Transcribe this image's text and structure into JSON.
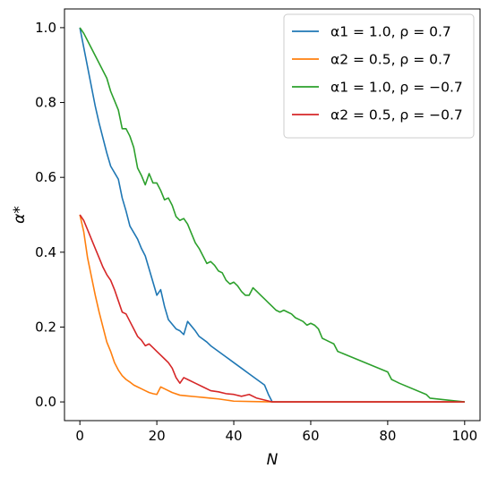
{
  "chart_data": {
    "type": "line",
    "xlabel": "N",
    "ylabel": "α*",
    "xlim": [
      -4,
      104
    ],
    "ylim": [
      -0.05,
      1.05
    ],
    "xticks": [
      "0",
      "20",
      "40",
      "60",
      "80",
      "100"
    ],
    "yticks": [
      "0.0",
      "0.2",
      "0.4",
      "0.6",
      "0.8",
      "1.0"
    ],
    "grid": false,
    "legend_position": "top-right",
    "series": [
      {
        "name": "α1 = 1.0, ρ = 0.7",
        "color": "#1f77b4",
        "x": [
          0,
          2,
          4,
          5,
          7,
          8,
          10,
          11,
          12,
          13,
          15,
          16,
          17,
          18,
          20,
          21,
          22,
          23,
          25,
          26,
          27,
          28,
          30,
          31,
          33,
          34,
          36,
          38,
          40,
          42,
          44,
          46,
          48,
          49,
          50,
          60,
          70,
          80,
          90,
          100
        ],
        "y": [
          1.0,
          0.895,
          0.79,
          0.745,
          0.665,
          0.63,
          0.595,
          0.545,
          0.51,
          0.47,
          0.435,
          0.41,
          0.39,
          0.355,
          0.285,
          0.3,
          0.255,
          0.22,
          0.195,
          0.19,
          0.18,
          0.215,
          0.19,
          0.175,
          0.16,
          0.15,
          0.135,
          0.12,
          0.105,
          0.09,
          0.075,
          0.06,
          0.045,
          0.02,
          0.0,
          0.0,
          0.0,
          0.0,
          0.0,
          0.0
        ]
      },
      {
        "name": "α2 = 0.5, ρ = 0.7",
        "color": "#ff7f0e",
        "x": [
          0,
          1,
          2,
          3,
          4,
          5,
          6,
          7,
          8,
          9,
          10,
          11,
          12,
          13,
          14,
          15,
          16,
          17,
          18,
          19,
          20,
          21,
          22,
          24,
          26,
          28,
          30,
          32,
          34,
          36,
          38,
          40,
          45,
          50,
          60,
          70,
          80,
          90,
          100
        ],
        "y": [
          0.5,
          0.455,
          0.385,
          0.335,
          0.285,
          0.24,
          0.2,
          0.16,
          0.135,
          0.105,
          0.085,
          0.07,
          0.06,
          0.053,
          0.045,
          0.04,
          0.035,
          0.03,
          0.025,
          0.022,
          0.02,
          0.04,
          0.035,
          0.025,
          0.018,
          0.016,
          0.014,
          0.012,
          0.01,
          0.008,
          0.005,
          0.002,
          0.001,
          0.0,
          0.0,
          0.0,
          0.0,
          0.0,
          0.0
        ]
      },
      {
        "name": "α1 = 1.0, ρ = −0.7",
        "color": "#2ca02c",
        "x": [
          0,
          1,
          2,
          3,
          4,
          5,
          6,
          7,
          8,
          9,
          10,
          11,
          12,
          13,
          14,
          15,
          16,
          17,
          18,
          19,
          20,
          21,
          22,
          23,
          24,
          25,
          26,
          27,
          28,
          29,
          30,
          31,
          32,
          33,
          34,
          35,
          36,
          37,
          38,
          39,
          40,
          41,
          42,
          43,
          44,
          45,
          46,
          47,
          48,
          49,
          50,
          51,
          52,
          53,
          54,
          55,
          56,
          57,
          58,
          59,
          60,
          61,
          62,
          63,
          64,
          65,
          66,
          67,
          80,
          81,
          82,
          83,
          90,
          91,
          100
        ],
        "y": [
          1.0,
          0.985,
          0.965,
          0.945,
          0.925,
          0.905,
          0.885,
          0.865,
          0.83,
          0.805,
          0.78,
          0.73,
          0.73,
          0.71,
          0.68,
          0.625,
          0.605,
          0.58,
          0.61,
          0.585,
          0.585,
          0.565,
          0.54,
          0.545,
          0.525,
          0.495,
          0.485,
          0.49,
          0.475,
          0.45,
          0.425,
          0.41,
          0.39,
          0.37,
          0.375,
          0.365,
          0.35,
          0.345,
          0.325,
          0.315,
          0.32,
          0.31,
          0.295,
          0.285,
          0.285,
          0.305,
          0.295,
          0.285,
          0.275,
          0.265,
          0.255,
          0.245,
          0.24,
          0.245,
          0.24,
          0.235,
          0.225,
          0.22,
          0.215,
          0.205,
          0.21,
          0.205,
          0.195,
          0.17,
          0.165,
          0.16,
          0.155,
          0.135,
          0.08,
          0.06,
          0.055,
          0.05,
          0.02,
          0.01,
          0.0
        ]
      },
      {
        "name": "α2 = 0.5, ρ = −0.7",
        "color": "#d62728",
        "x": [
          0,
          1,
          2,
          3,
          4,
          5,
          6,
          7,
          8,
          9,
          10,
          11,
          12,
          13,
          14,
          15,
          16,
          17,
          18,
          19,
          20,
          21,
          22,
          23,
          24,
          25,
          26,
          27,
          28,
          30,
          32,
          34,
          36,
          38,
          40,
          42,
          44,
          46,
          48,
          50,
          60,
          70,
          80,
          90,
          100
        ],
        "y": [
          0.5,
          0.485,
          0.46,
          0.435,
          0.41,
          0.385,
          0.36,
          0.34,
          0.325,
          0.3,
          0.27,
          0.24,
          0.235,
          0.215,
          0.195,
          0.175,
          0.165,
          0.15,
          0.155,
          0.145,
          0.135,
          0.125,
          0.115,
          0.105,
          0.09,
          0.065,
          0.05,
          0.065,
          0.06,
          0.05,
          0.04,
          0.03,
          0.027,
          0.022,
          0.02,
          0.015,
          0.02,
          0.01,
          0.005,
          0.0,
          0.0,
          0.0,
          0.0,
          0.0,
          0.0
        ]
      }
    ]
  }
}
